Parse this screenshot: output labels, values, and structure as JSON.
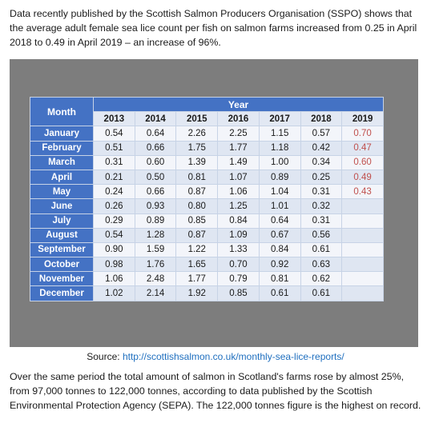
{
  "intro": "Data recently published by the Scottish Salmon Producers Organisation (SSPO) shows that the average adult female sea lice count per fish on salmon farms increased from 0.25 in April 2018 to 0.49 in April 2019 – an increase of 96%.",
  "table": {
    "month_header": "Month",
    "year_header": "Year",
    "years": [
      "2013",
      "2014",
      "2015",
      "2016",
      "2017",
      "2018",
      "2019"
    ],
    "rows": [
      {
        "month": "January",
        "values": [
          "0.54",
          "0.64",
          "2.26",
          "2.25",
          "1.15",
          "0.57",
          "0.70"
        ]
      },
      {
        "month": "February",
        "values": [
          "0.51",
          "0.66",
          "1.75",
          "1.77",
          "1.18",
          "0.42",
          "0.47"
        ]
      },
      {
        "month": "March",
        "values": [
          "0.31",
          "0.60",
          "1.39",
          "1.49",
          "1.00",
          "0.34",
          "0.60"
        ]
      },
      {
        "month": "April",
        "values": [
          "0.21",
          "0.50",
          "0.81",
          "1.07",
          "0.89",
          "0.25",
          "0.49"
        ]
      },
      {
        "month": "May",
        "values": [
          "0.24",
          "0.66",
          "0.87",
          "1.06",
          "1.04",
          "0.31",
          "0.43"
        ]
      },
      {
        "month": "June",
        "values": [
          "0.26",
          "0.93",
          "0.80",
          "1.25",
          "1.01",
          "0.32",
          ""
        ]
      },
      {
        "month": "July",
        "values": [
          "0.29",
          "0.89",
          "0.85",
          "0.84",
          "0.64",
          "0.31",
          ""
        ]
      },
      {
        "month": "August",
        "values": [
          "0.54",
          "1.28",
          "0.87",
          "1.09",
          "0.67",
          "0.56",
          ""
        ]
      },
      {
        "month": "September",
        "values": [
          "0.90",
          "1.59",
          "1.22",
          "1.33",
          "0.84",
          "0.61",
          ""
        ]
      },
      {
        "month": "October",
        "values": [
          "0.98",
          "1.76",
          "1.65",
          "0.70",
          "0.92",
          "0.63",
          ""
        ]
      },
      {
        "month": "November",
        "values": [
          "1.06",
          "2.48",
          "1.77",
          "0.79",
          "0.81",
          "0.62",
          ""
        ]
      },
      {
        "month": "December",
        "values": [
          "1.02",
          "2.14",
          "1.92",
          "0.85",
          "0.61",
          "0.61",
          ""
        ]
      }
    ],
    "highlight_color": "#c0504d"
  },
  "source": {
    "label": "Source: ",
    "link": "http://scottishsalmon.co.uk/monthly-sea-lice-reports/"
  },
  "outro": "Over the same period the total amount of salmon in Scotland's farms rose by almost 25%, from 97,000 tonnes to 122,000 tonnes, according to data published by the Scottish Environmental Protection Agency (SEPA). The 122,000 tonnes figure is the highest on record."
}
